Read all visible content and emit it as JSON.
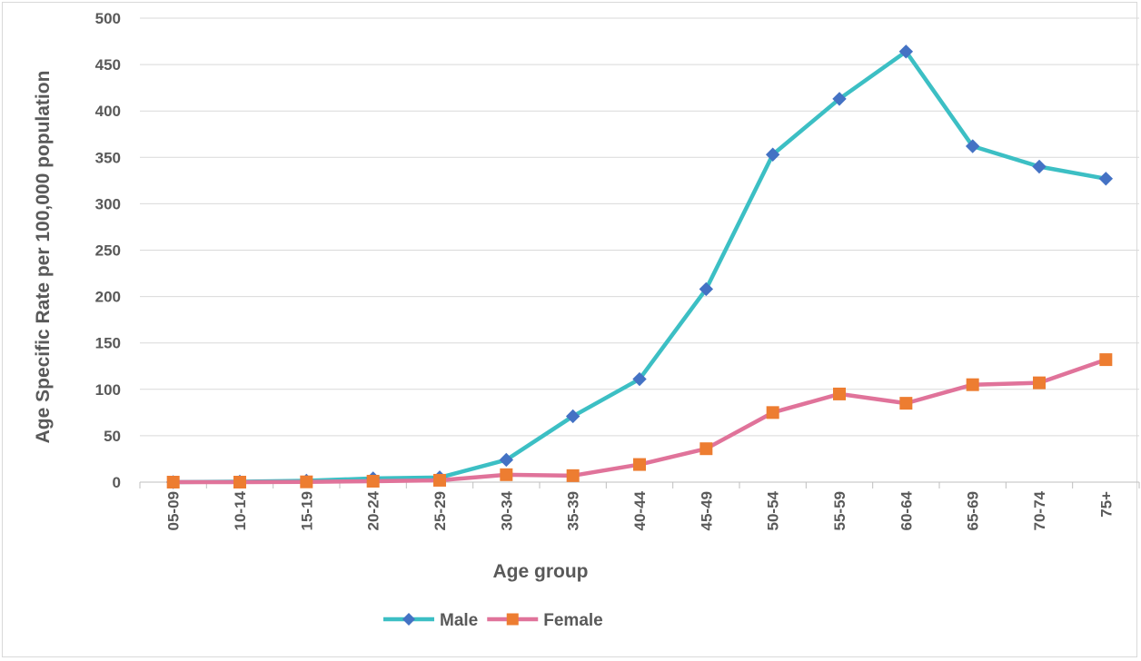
{
  "chart_data": {
    "type": "line",
    "title": "",
    "xlabel": "Age group",
    "ylabel": "Age Specific Rate per 100,000 population",
    "ylim": [
      0,
      500
    ],
    "yticks": [
      0,
      50,
      100,
      150,
      200,
      250,
      300,
      350,
      400,
      450,
      500
    ],
    "grid": true,
    "legend": "bottom",
    "categories": [
      "05-09",
      "10-14",
      "15-19",
      "20-24",
      "25-29",
      "30-34",
      "35-39",
      "40-44",
      "45-49",
      "50-54",
      "55-59",
      "60-64",
      "65-69",
      "70-74",
      "75+"
    ],
    "series": [
      {
        "name": "Male",
        "line_color": "#3cbfc4",
        "marker_color": "#4472c4",
        "marker": "diamond",
        "values": [
          0,
          0.5,
          1.5,
          4,
          5,
          24,
          71,
          111,
          208,
          353,
          413,
          464,
          362,
          340,
          327
        ]
      },
      {
        "name": "Female",
        "line_color": "#e0739a",
        "marker_color": "#ed7d31",
        "marker": "square",
        "values": [
          0,
          0,
          0.3,
          1,
          2,
          8,
          7,
          19,
          36,
          75,
          95,
          85,
          105,
          107,
          132
        ]
      }
    ]
  }
}
